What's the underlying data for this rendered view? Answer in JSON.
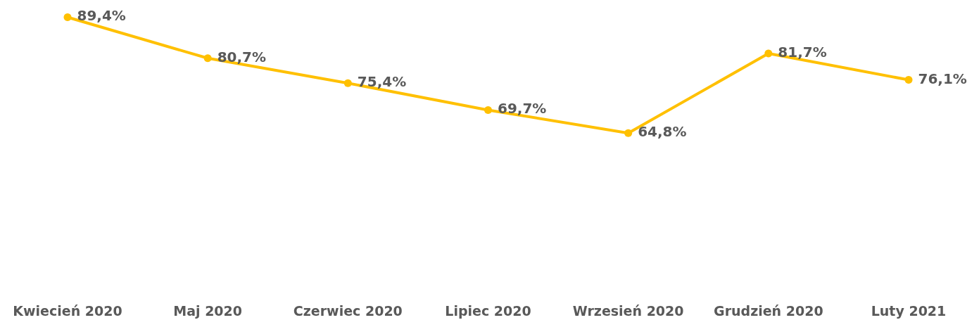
{
  "chart_data": {
    "type": "line",
    "categories": [
      "Kwiecień 2020",
      "Maj 2020",
      "Czerwiec 2020",
      "Lipiec 2020",
      "Wrzesień 2020",
      "Grudzień 2020",
      "Luty 2021"
    ],
    "series": [
      {
        "color": "#ffc000",
        "values": [
          89.4,
          80.7,
          75.4,
          69.7,
          64.8,
          81.7,
          76.1
        ],
        "value_labels": [
          "89,4%",
          "80,7%",
          "75,4%",
          "69,7%",
          "64,8%",
          "81,7%",
          "76,1%"
        ]
      }
    ],
    "marker": "circle",
    "line_style": "solid",
    "grid": false
  }
}
